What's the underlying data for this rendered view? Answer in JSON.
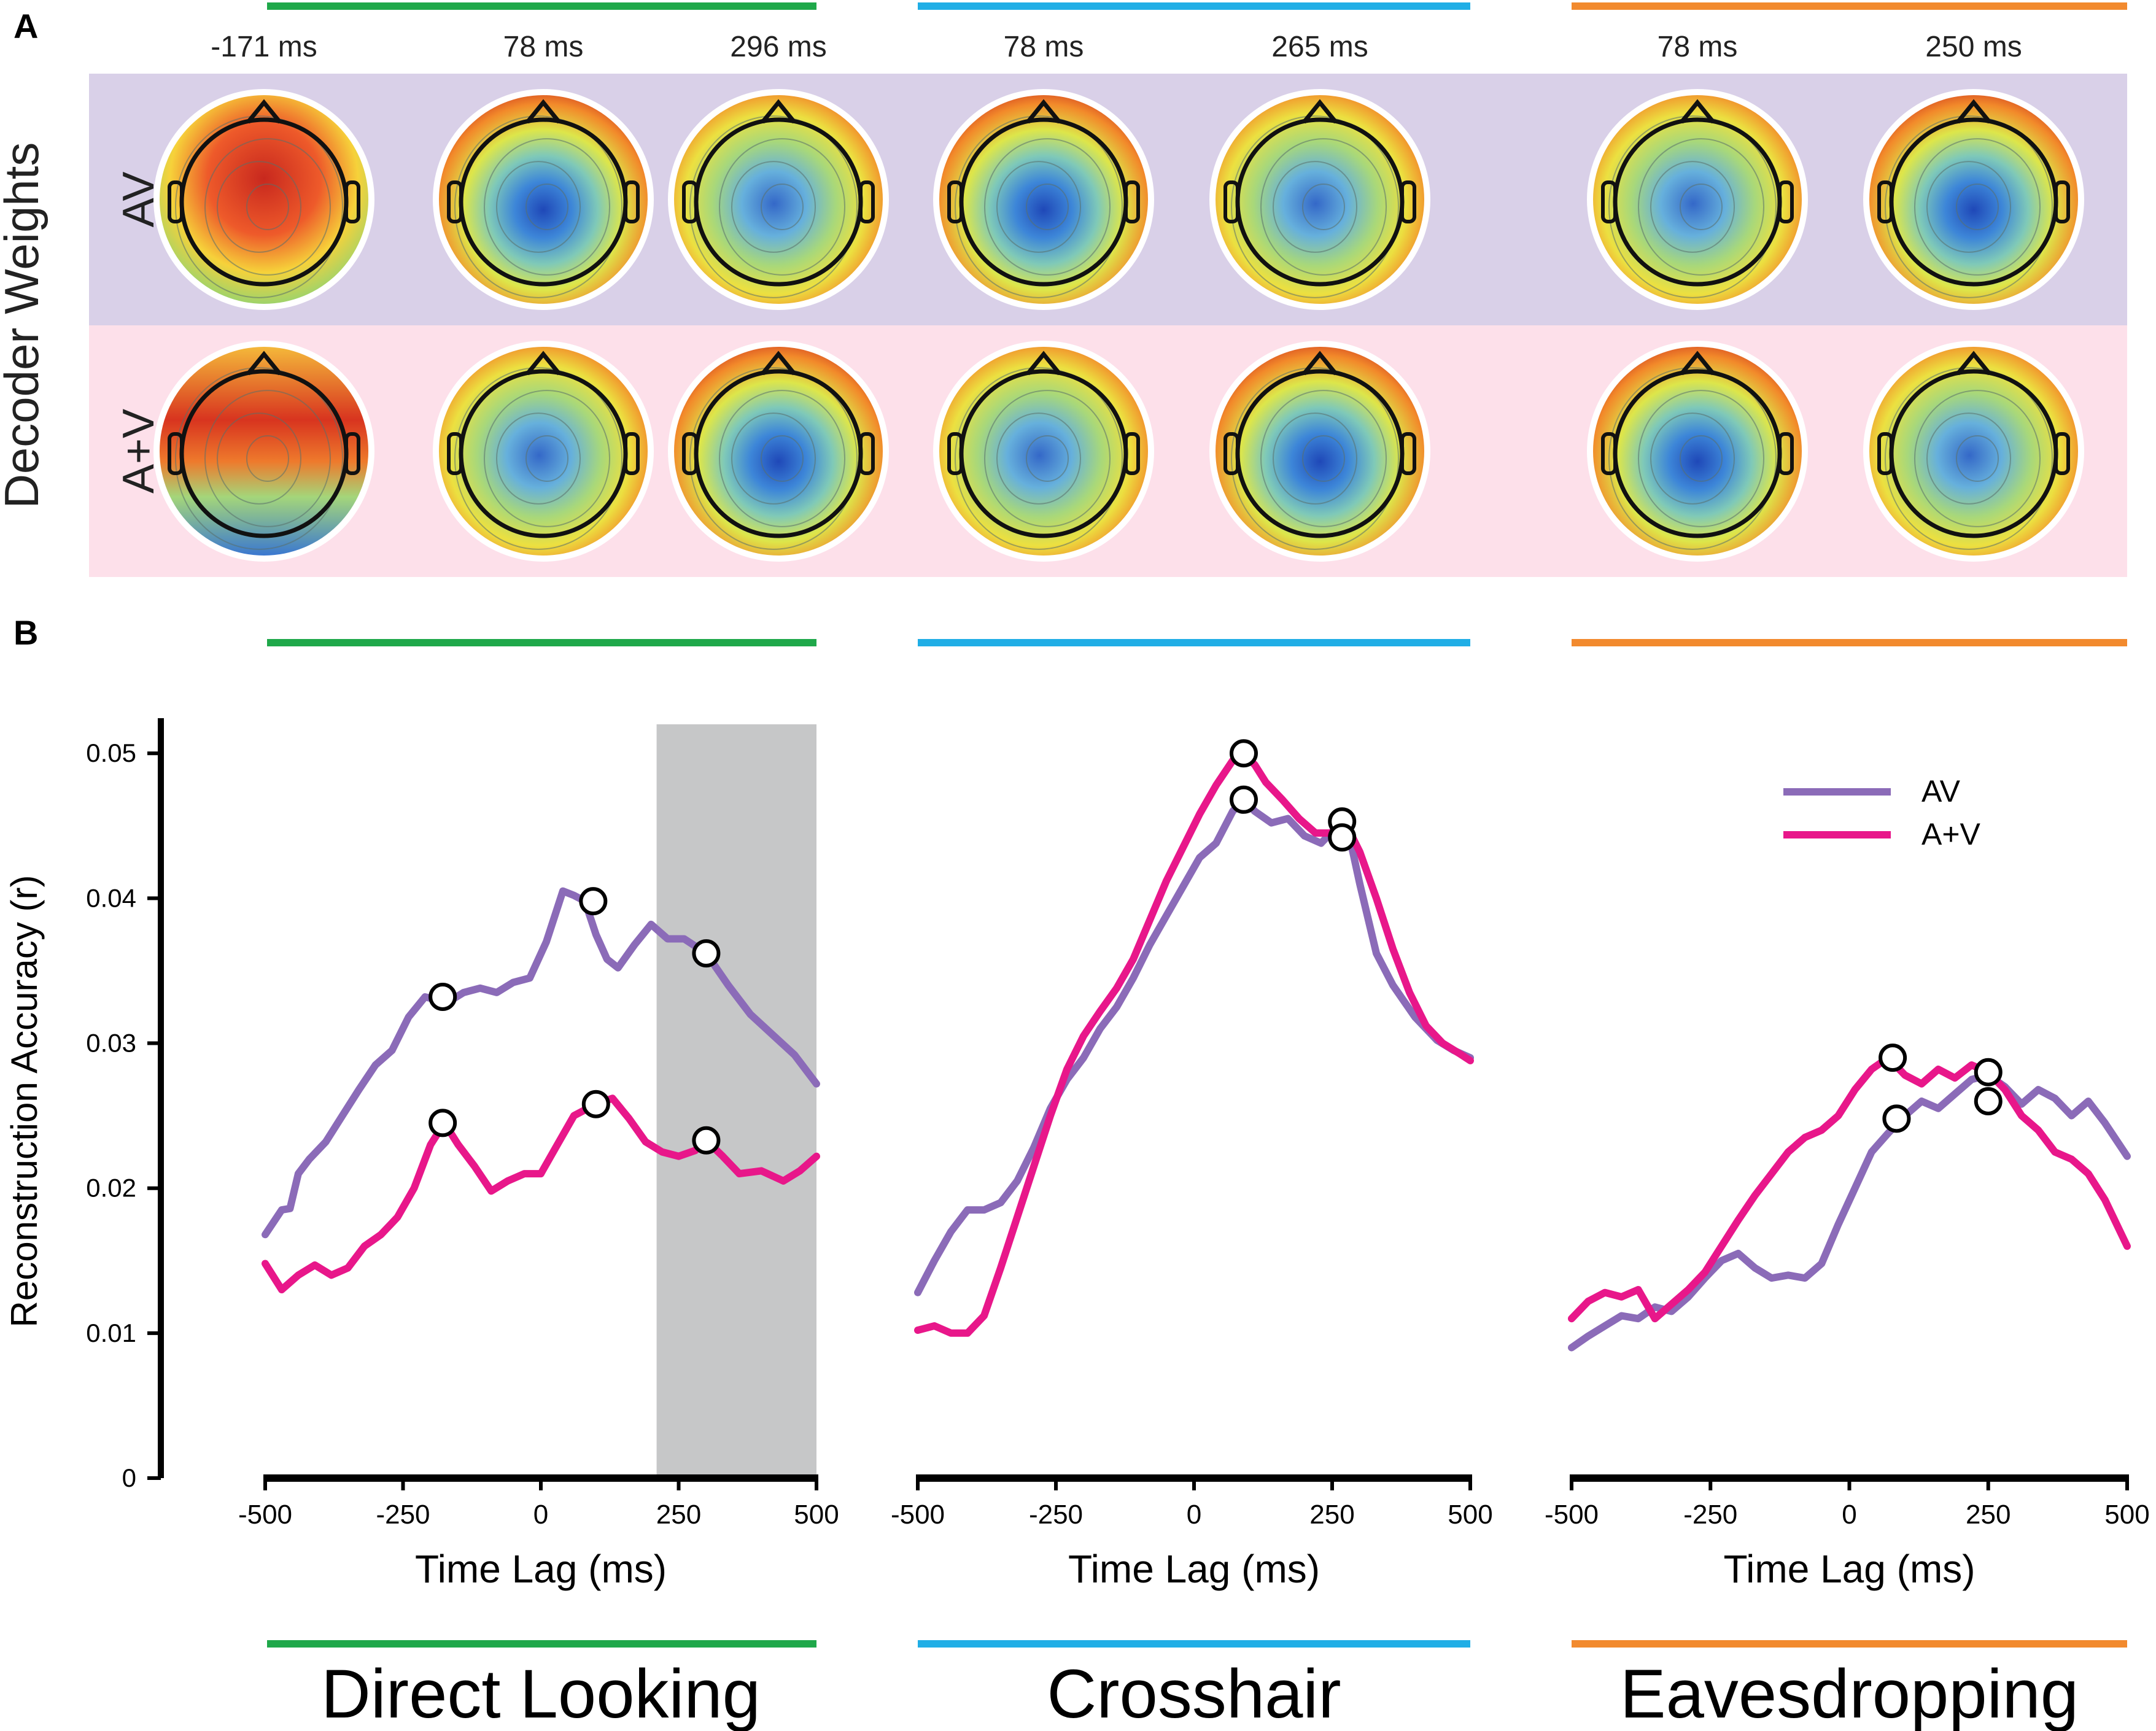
{
  "panel_labels": {
    "a": "A",
    "b": "B"
  },
  "panel_a": {
    "row_axis_label": "Decoder Weights",
    "rows": [
      {
        "label": "AV",
        "color": "#d9d0e8"
      },
      {
        "label": "A+V",
        "color": "#fde0ea"
      }
    ],
    "groups": [
      {
        "name": "Direct Looking",
        "color": "#1fa84a",
        "time_labels": [
          "-171 ms",
          "78 ms",
          "296 ms"
        ]
      },
      {
        "name": "Crosshair",
        "color": "#20aee6",
        "time_labels": [
          "78 ms",
          "265 ms"
        ]
      },
      {
        "name": "Eavesdropping",
        "color": "#f28a2e",
        "time_labels": [
          "78 ms",
          "250 ms"
        ]
      }
    ]
  },
  "chart_data": [
    {
      "type": "line",
      "condition": "Direct Looking",
      "title": "Direct Looking",
      "xlabel": "Time Lag (ms)",
      "ylabel": "Reconstruction Accuracy (r)",
      "xlim": [
        -500,
        500
      ],
      "ylim": [
        0,
        0.052
      ],
      "xticks": [
        -500,
        -250,
        0,
        250,
        500
      ],
      "xtick_labels": [
        "-500",
        "-250",
        "0",
        "250",
        "500"
      ],
      "yticks": [
        0,
        0.01,
        0.02,
        0.03,
        0.04,
        0.05
      ],
      "ytick_labels": [
        "0",
        "0.01",
        "0.02",
        "0.03",
        "0.04",
        "0.05"
      ],
      "shaded_region": {
        "x": [
          210,
          500
        ],
        "color": "#c6c7c8"
      },
      "series": [
        {
          "name": "AV",
          "color": "#8b6bb8",
          "x": [
            -500,
            -470,
            -455,
            -440,
            -420,
            -390,
            -360,
            -330,
            -300,
            -270,
            -240,
            -210,
            -190,
            -170,
            -140,
            -110,
            -80,
            -50,
            -20,
            10,
            40,
            60,
            80,
            100,
            120,
            140,
            170,
            200,
            230,
            260,
            300,
            340,
            380,
            420,
            460,
            500
          ],
          "y": [
            0.0168,
            0.0185,
            0.0186,
            0.021,
            0.022,
            0.0232,
            0.025,
            0.0268,
            0.0285,
            0.0295,
            0.0318,
            0.0332,
            0.033,
            0.0328,
            0.0335,
            0.0338,
            0.0335,
            0.0342,
            0.0345,
            0.037,
            0.0405,
            0.0402,
            0.0398,
            0.0375,
            0.0358,
            0.0352,
            0.0368,
            0.0382,
            0.0372,
            0.0372,
            0.0362,
            0.034,
            0.032,
            0.0306,
            0.0292,
            0.0272
          ]
        },
        {
          "name": "A+V",
          "color": "#e8178a",
          "x": [
            -500,
            -470,
            -440,
            -410,
            -380,
            -350,
            -320,
            -290,
            -260,
            -230,
            -200,
            -175,
            -150,
            -120,
            -90,
            -60,
            -30,
            0,
            30,
            60,
            100,
            130,
            160,
            190,
            220,
            250,
            280,
            300,
            330,
            360,
            400,
            440,
            470,
            500
          ],
          "y": [
            0.0148,
            0.013,
            0.014,
            0.0147,
            0.014,
            0.0145,
            0.016,
            0.0168,
            0.018,
            0.02,
            0.023,
            0.0245,
            0.023,
            0.0215,
            0.0198,
            0.0205,
            0.021,
            0.021,
            0.023,
            0.025,
            0.0258,
            0.0262,
            0.0248,
            0.0232,
            0.0225,
            0.0222,
            0.0226,
            0.0233,
            0.0222,
            0.021,
            0.0212,
            0.0205,
            0.0212,
            0.0222
          ]
        }
      ],
      "markers": [
        {
          "series": "AV",
          "x": -178,
          "y": 0.0332
        },
        {
          "series": "AV",
          "x": 95,
          "y": 0.0398
        },
        {
          "series": "AV",
          "x": 300,
          "y": 0.0362
        },
        {
          "series": "A+V",
          "x": -178,
          "y": 0.0245
        },
        {
          "series": "A+V",
          "x": 100,
          "y": 0.0258
        },
        {
          "series": "A+V",
          "x": 300,
          "y": 0.0233
        }
      ]
    },
    {
      "type": "line",
      "condition": "Crosshair",
      "title": "Crosshair",
      "xlabel": "Time Lag (ms)",
      "ylabel": "",
      "xlim": [
        -500,
        500
      ],
      "ylim": [
        0,
        0.052
      ],
      "xticks": [
        -500,
        -250,
        0,
        250,
        500
      ],
      "xtick_labels": [
        "-500",
        "-250",
        "0",
        "250",
        "500"
      ],
      "series": [
        {
          "name": "AV",
          "color": "#8b6bb8",
          "x": [
            -500,
            -470,
            -440,
            -410,
            -380,
            -350,
            -320,
            -290,
            -260,
            -230,
            -200,
            -170,
            -140,
            -110,
            -80,
            -50,
            -20,
            10,
            40,
            70,
            90,
            110,
            140,
            170,
            200,
            230,
            260,
            280,
            300,
            330,
            360,
            400,
            440,
            470,
            500
          ],
          "y": [
            0.0128,
            0.015,
            0.017,
            0.0185,
            0.0185,
            0.019,
            0.0205,
            0.0228,
            0.0255,
            0.0275,
            0.029,
            0.031,
            0.0325,
            0.0345,
            0.0368,
            0.0388,
            0.0408,
            0.0428,
            0.0438,
            0.046,
            0.0468,
            0.046,
            0.0452,
            0.0455,
            0.0443,
            0.0438,
            0.045,
            0.0445,
            0.041,
            0.0362,
            0.034,
            0.0318,
            0.0302,
            0.0295,
            0.029
          ]
        },
        {
          "name": "A+V",
          "color": "#e8178a",
          "x": [
            -500,
            -470,
            -440,
            -410,
            -380,
            -350,
            -320,
            -290,
            -260,
            -230,
            -200,
            -170,
            -140,
            -110,
            -80,
            -50,
            -20,
            10,
            40,
            70,
            90,
            110,
            130,
            160,
            190,
            220,
            250,
            270,
            300,
            330,
            360,
            390,
            420,
            450,
            480,
            500
          ],
          "y": [
            0.0102,
            0.0105,
            0.01,
            0.01,
            0.0112,
            0.0145,
            0.018,
            0.0215,
            0.025,
            0.0282,
            0.0305,
            0.0322,
            0.0338,
            0.0358,
            0.0385,
            0.0412,
            0.0435,
            0.0458,
            0.0478,
            0.0495,
            0.05,
            0.0492,
            0.048,
            0.0468,
            0.0455,
            0.0445,
            0.0445,
            0.0455,
            0.0432,
            0.04,
            0.0365,
            0.0335,
            0.0312,
            0.03,
            0.0293,
            0.0288
          ]
        }
      ],
      "markers": [
        {
          "series": "A+V",
          "x": 90,
          "y": 0.05
        },
        {
          "series": "AV",
          "x": 90,
          "y": 0.0468
        },
        {
          "series": "A+V",
          "x": 268,
          "y": 0.0453
        },
        {
          "series": "AV",
          "x": 268,
          "y": 0.0442
        }
      ]
    },
    {
      "type": "line",
      "condition": "Eavesdropping",
      "title": "Eavesdropping",
      "xlabel": "Time Lag (ms)",
      "ylabel": "",
      "xlim": [
        -500,
        500
      ],
      "ylim": [
        0,
        0.052
      ],
      "xticks": [
        -500,
        -250,
        0,
        250,
        500
      ],
      "xtick_labels": [
        "-500",
        "-250",
        "0",
        "250",
        "500"
      ],
      "legend": {
        "placement": "top-right",
        "entries": [
          "AV",
          "A+V"
        ]
      },
      "series": [
        {
          "name": "AV",
          "color": "#8b6bb8",
          "x": [
            -500,
            -470,
            -440,
            -410,
            -380,
            -350,
            -320,
            -290,
            -260,
            -230,
            -200,
            -170,
            -140,
            -110,
            -80,
            -50,
            -20,
            10,
            40,
            70,
            100,
            130,
            160,
            190,
            220,
            250,
            280,
            310,
            340,
            370,
            400,
            430,
            460,
            500
          ],
          "y": [
            0.009,
            0.0098,
            0.0105,
            0.0112,
            0.011,
            0.0118,
            0.0115,
            0.0125,
            0.0138,
            0.015,
            0.0155,
            0.0145,
            0.0138,
            0.014,
            0.0138,
            0.0148,
            0.0175,
            0.02,
            0.0225,
            0.0238,
            0.025,
            0.026,
            0.0255,
            0.0265,
            0.0275,
            0.0278,
            0.027,
            0.0258,
            0.0268,
            0.0262,
            0.025,
            0.026,
            0.0245,
            0.0222
          ]
        },
        {
          "name": "A+V",
          "color": "#e8178a",
          "x": [
            -500,
            -470,
            -440,
            -410,
            -380,
            -350,
            -320,
            -290,
            -260,
            -230,
            -200,
            -170,
            -140,
            -110,
            -80,
            -50,
            -20,
            10,
            40,
            70,
            100,
            130,
            160,
            190,
            220,
            250,
            280,
            310,
            340,
            370,
            400,
            430,
            460,
            500
          ],
          "y": [
            0.011,
            0.0122,
            0.0128,
            0.0125,
            0.013,
            0.011,
            0.012,
            0.013,
            0.0142,
            0.016,
            0.0178,
            0.0195,
            0.021,
            0.0225,
            0.0235,
            0.024,
            0.025,
            0.0268,
            0.0282,
            0.029,
            0.0278,
            0.0272,
            0.0282,
            0.0276,
            0.0285,
            0.028,
            0.0268,
            0.025,
            0.024,
            0.0225,
            0.022,
            0.021,
            0.0192,
            0.016
          ]
        }
      ],
      "markers": [
        {
          "series": "A+V",
          "x": 78,
          "y": 0.029
        },
        {
          "series": "AV",
          "x": 85,
          "y": 0.0248
        },
        {
          "series": "A+V",
          "x": 250,
          "y": 0.028
        },
        {
          "series": "AV",
          "x": 250,
          "y": 0.026
        }
      ]
    }
  ]
}
